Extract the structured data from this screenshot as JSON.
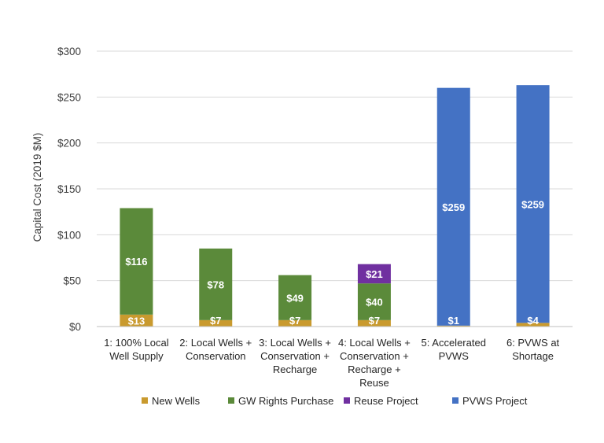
{
  "chart_data": {
    "type": "bar",
    "stacked": true,
    "ylabel": "Capital Cost (2019 $M)",
    "ylim": [
      0,
      300
    ],
    "y_ticks": [
      "$0",
      "$50",
      "$100",
      "$150",
      "$200",
      "$250",
      "$300"
    ],
    "grid": true,
    "legend_position": "bottom",
    "categories": [
      [
        "1: 100% Local",
        "Well Supply"
      ],
      [
        "2: Local Wells +",
        "Conservation"
      ],
      [
        "3: Local Wells +",
        "Conservation +",
        "Recharge"
      ],
      [
        "4: Local Wells +",
        "Conservation +",
        "Recharge +",
        "Reuse"
      ],
      [
        "5: Accelerated",
        "PVWS"
      ],
      [
        "6: PVWS at",
        "Shortage"
      ]
    ],
    "series": [
      {
        "name": "New Wells",
        "color": "#C99A2E",
        "values": [
          13,
          7,
          7,
          7,
          1,
          4
        ],
        "labels": [
          "$13",
          "$7",
          "$7",
          "$7",
          "$1",
          "$4"
        ]
      },
      {
        "name": "GW Rights Purchase",
        "color": "#5B8A3A",
        "values": [
          116,
          78,
          49,
          40,
          0,
          0
        ],
        "labels": [
          "$116",
          "$78",
          "$49",
          "$40",
          "",
          ""
        ]
      },
      {
        "name": "Reuse Project",
        "color": "#7030A0",
        "values": [
          0,
          0,
          0,
          21,
          0,
          0
        ],
        "labels": [
          "",
          "",
          "",
          "$21",
          "",
          ""
        ]
      },
      {
        "name": "PVWS Project",
        "color": "#4472C4",
        "values": [
          0,
          0,
          0,
          0,
          259,
          259
        ],
        "labels": [
          "",
          "",
          "",
          "",
          "$259",
          "$259"
        ]
      }
    ]
  }
}
